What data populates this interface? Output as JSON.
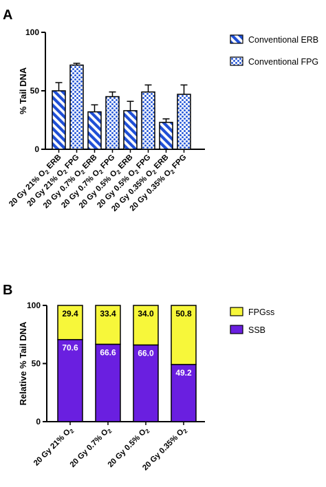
{
  "chart_data": [
    {
      "panel": "A",
      "type": "bar",
      "categories": [
        "20 Gy 21% O2 ERB",
        "20 Gy 21% O2 FPG",
        "20 Gy 0.7% O2 ERB",
        "20 Gy 0.7% O2 FPG",
        "20 Gy 0.5% O2 ERB",
        "20 Gy 0.5% O2 FPG",
        "20 Gy 0.35% O2 ERB",
        "20 Gy 0.35% O2 FPG"
      ],
      "category_parts": [
        [
          "20 Gy 21% O",
          "2",
          " ERB"
        ],
        [
          "20 Gy 21% O",
          "2",
          " FPG"
        ],
        [
          "20 Gy 0.7% O",
          "2",
          " ERB"
        ],
        [
          "20 Gy 0.7% O",
          "2",
          " FPG"
        ],
        [
          "20 Gy 0.5% O",
          "2",
          " ERB"
        ],
        [
          "20 Gy 0.5% O",
          "2",
          " FPG"
        ],
        [
          "20 Gy 0.35% O",
          "2",
          " ERB"
        ],
        [
          "20 Gy 0.35% O",
          "2",
          " FPG"
        ]
      ],
      "values": [
        50,
        72,
        32,
        45,
        33,
        49,
        23,
        47
      ],
      "errors": [
        7,
        1.5,
        6,
        4,
        8,
        6,
        3,
        8
      ],
      "bar_series": [
        "ERB",
        "FPG",
        "ERB",
        "FPG",
        "ERB",
        "FPG",
        "ERB",
        "FPG"
      ],
      "series": [
        {
          "key": "ERB",
          "name": "Conventional ERB",
          "pattern": "diagonal-stripes",
          "color": "#1f4fd6"
        },
        {
          "key": "FPG",
          "name": "Conventional FPG",
          "pattern": "dots",
          "color": "#2a5bd8"
        }
      ],
      "ylabel": "% Tail DNA",
      "ylim": [
        0,
        100
      ],
      "yticks": [
        "0",
        "50",
        "100"
      ],
      "legend_position": "right"
    },
    {
      "panel": "B",
      "type": "bar",
      "stacked": true,
      "categories": [
        "20 Gy 21% O2",
        "20 Gy 0.7% O2",
        "20 Gy 0.5% O2",
        "20 Gy 0.35% O2"
      ],
      "category_parts": [
        [
          "20 Gy 21% O",
          "2",
          ""
        ],
        [
          "20 Gy 0.7% O",
          "2",
          ""
        ],
        [
          "20 Gy 0.5% O",
          "2",
          ""
        ],
        [
          "20 Gy 0.35% O",
          "2",
          ""
        ]
      ],
      "series": [
        {
          "name": "SSB",
          "values": [
            70.6,
            66.6,
            66.0,
            49.2
          ],
          "labels": [
            "70.6",
            "66.6",
            "66.0",
            "49.2"
          ],
          "color": "#6a1fe0",
          "label_color": "#ffffff"
        },
        {
          "name": "FPGss",
          "values": [
            29.4,
            33.4,
            34.0,
            50.8
          ],
          "labels": [
            "29.4",
            "33.4",
            "34.0",
            "50.8"
          ],
          "color": "#f7f73a",
          "label_color": "#000000"
        }
      ],
      "legend_order": [
        "FPGss",
        "SSB"
      ],
      "ylabel": "Relative % Tail DNA",
      "ylim": [
        0,
        100
      ],
      "yticks": [
        "0",
        "50",
        "100"
      ],
      "legend_position": "right"
    }
  ]
}
